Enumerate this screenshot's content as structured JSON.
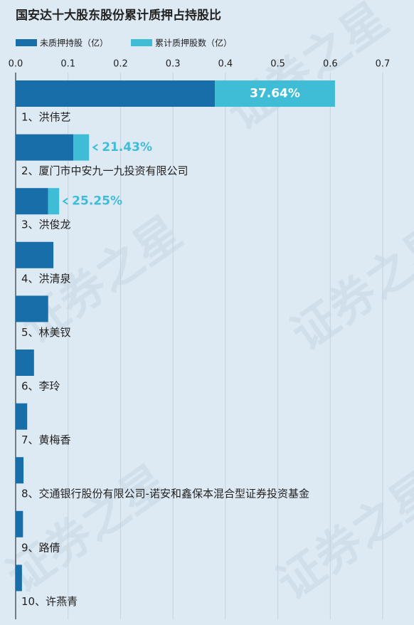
{
  "chart_data": {
    "type": "stacked-barh",
    "title": "国安达十大股东股份累计质押占持股比",
    "watermark": "证券之星",
    "categories": [
      "1、洪伟艺",
      "2、厦门市中安九一九投资有限公司",
      "3、洪俊龙",
      "4、洪清泉",
      "5、林美钗",
      "6、李玲",
      "7、黄梅香",
      "8、交通银行股份有限公司-诺安和鑫保本混合型证券投资基金",
      "9、路倩",
      "10、许燕青"
    ],
    "series": [
      {
        "name": "未质押持股（亿）",
        "color": "#176ea8",
        "values": [
          0.38,
          0.11,
          0.062,
          0.072,
          0.062,
          0.035,
          0.022,
          0.015,
          0.014,
          0.012
        ]
      },
      {
        "name": "累计质押股数（亿）",
        "color": "#3fbdd6",
        "values": [
          0.229,
          0.03,
          0.021,
          0,
          0,
          0,
          0,
          0,
          0,
          0
        ]
      }
    ],
    "pledge_ratio": {
      "values": [
        37.64,
        21.43,
        25.25
      ],
      "value_labels": [
        "37.64%",
        "21.43%",
        "25.25%"
      ]
    },
    "xlim": [
      0,
      0.7
    ],
    "xticks": [
      {
        "value": 0,
        "label": "0.0"
      },
      0.1,
      0.2,
      0.3,
      0.4,
      0.5,
      0.6,
      0.7
    ],
    "grid": true
  }
}
